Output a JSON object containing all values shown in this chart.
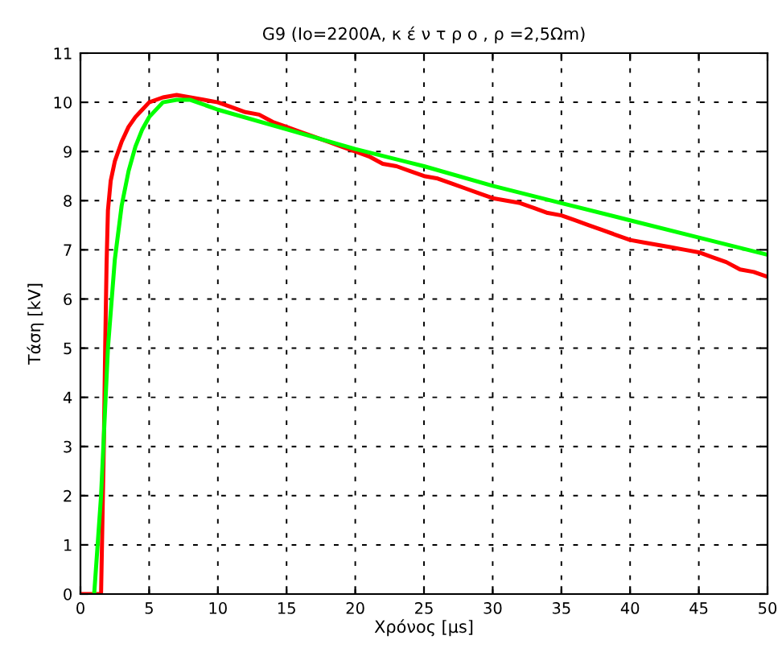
{
  "chart_data": {
    "type": "line",
    "title": "G9 (Io=2200A, κ έ ν τ ρ ο , ρ =2,5Ωm)",
    "xlabel": "Χρόνος [μs]",
    "ylabel": "Τάση [kV]",
    "xlim": [
      0,
      50
    ],
    "ylim": [
      0,
      11
    ],
    "xticks": [
      0,
      5,
      10,
      15,
      20,
      25,
      30,
      35,
      40,
      45,
      50
    ],
    "yticks": [
      0,
      1,
      2,
      3,
      4,
      5,
      6,
      7,
      8,
      9,
      10,
      11
    ],
    "grid": true,
    "legend": false,
    "series": [
      {
        "color": "#ff0000",
        "x": [
          0,
          1.5,
          1.6,
          1.7,
          1.8,
          1.9,
          2.0,
          2.2,
          2.5,
          3,
          3.5,
          4,
          4.5,
          5,
          6,
          7,
          8,
          9,
          10,
          11,
          12,
          13,
          14,
          15,
          16,
          17,
          18,
          19,
          20,
          21,
          22,
          23,
          24,
          25,
          26,
          27,
          28,
          29,
          30,
          31,
          32,
          33,
          34,
          35,
          36,
          37,
          38,
          39,
          40,
          41,
          42,
          43,
          44,
          45,
          46,
          47,
          48,
          49,
          50
        ],
        "values": [
          0,
          0,
          1.5,
          3,
          5,
          6.7,
          7.8,
          8.4,
          8.8,
          9.2,
          9.5,
          9.7,
          9.85,
          10.0,
          10.1,
          10.15,
          10.1,
          10.05,
          10.0,
          9.9,
          9.8,
          9.75,
          9.6,
          9.5,
          9.4,
          9.3,
          9.2,
          9.1,
          9.0,
          8.9,
          8.75,
          8.7,
          8.6,
          8.5,
          8.45,
          8.35,
          8.25,
          8.15,
          8.05,
          8.0,
          7.95,
          7.85,
          7.75,
          7.7,
          7.6,
          7.5,
          7.4,
          7.3,
          7.2,
          7.15,
          7.1,
          7.05,
          7.0,
          6.95,
          6.85,
          6.75,
          6.6,
          6.55,
          6.45
        ]
      },
      {
        "color": "#00ff00",
        "x": [
          1.0,
          1.5,
          2.0,
          2.5,
          3,
          3.5,
          4,
          4.5,
          5,
          6,
          7,
          8,
          10,
          15,
          20,
          25,
          30,
          35,
          40,
          45,
          50
        ],
        "values": [
          0,
          2,
          5,
          6.8,
          7.9,
          8.6,
          9.1,
          9.45,
          9.7,
          10.0,
          10.05,
          10.05,
          9.85,
          9.45,
          9.05,
          8.7,
          8.3,
          7.95,
          7.6,
          7.25,
          6.9
        ]
      }
    ]
  }
}
